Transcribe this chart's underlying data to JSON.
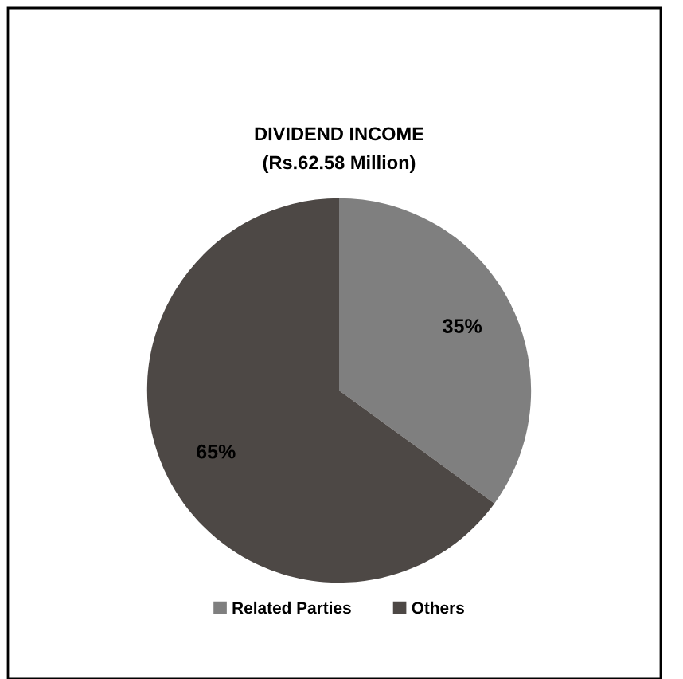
{
  "chart_data": {
    "type": "pie",
    "title": "DIVIDEND INCOME",
    "subtitle": "(Rs.62.58 Million)",
    "categories": [
      "Related Parties",
      "Others"
    ],
    "values": [
      35,
      65
    ],
    "colors": [
      "#7f7f7f",
      "#4d4845"
    ],
    "value_labels": [
      "35%",
      "65%"
    ],
    "legend": "bottom"
  }
}
